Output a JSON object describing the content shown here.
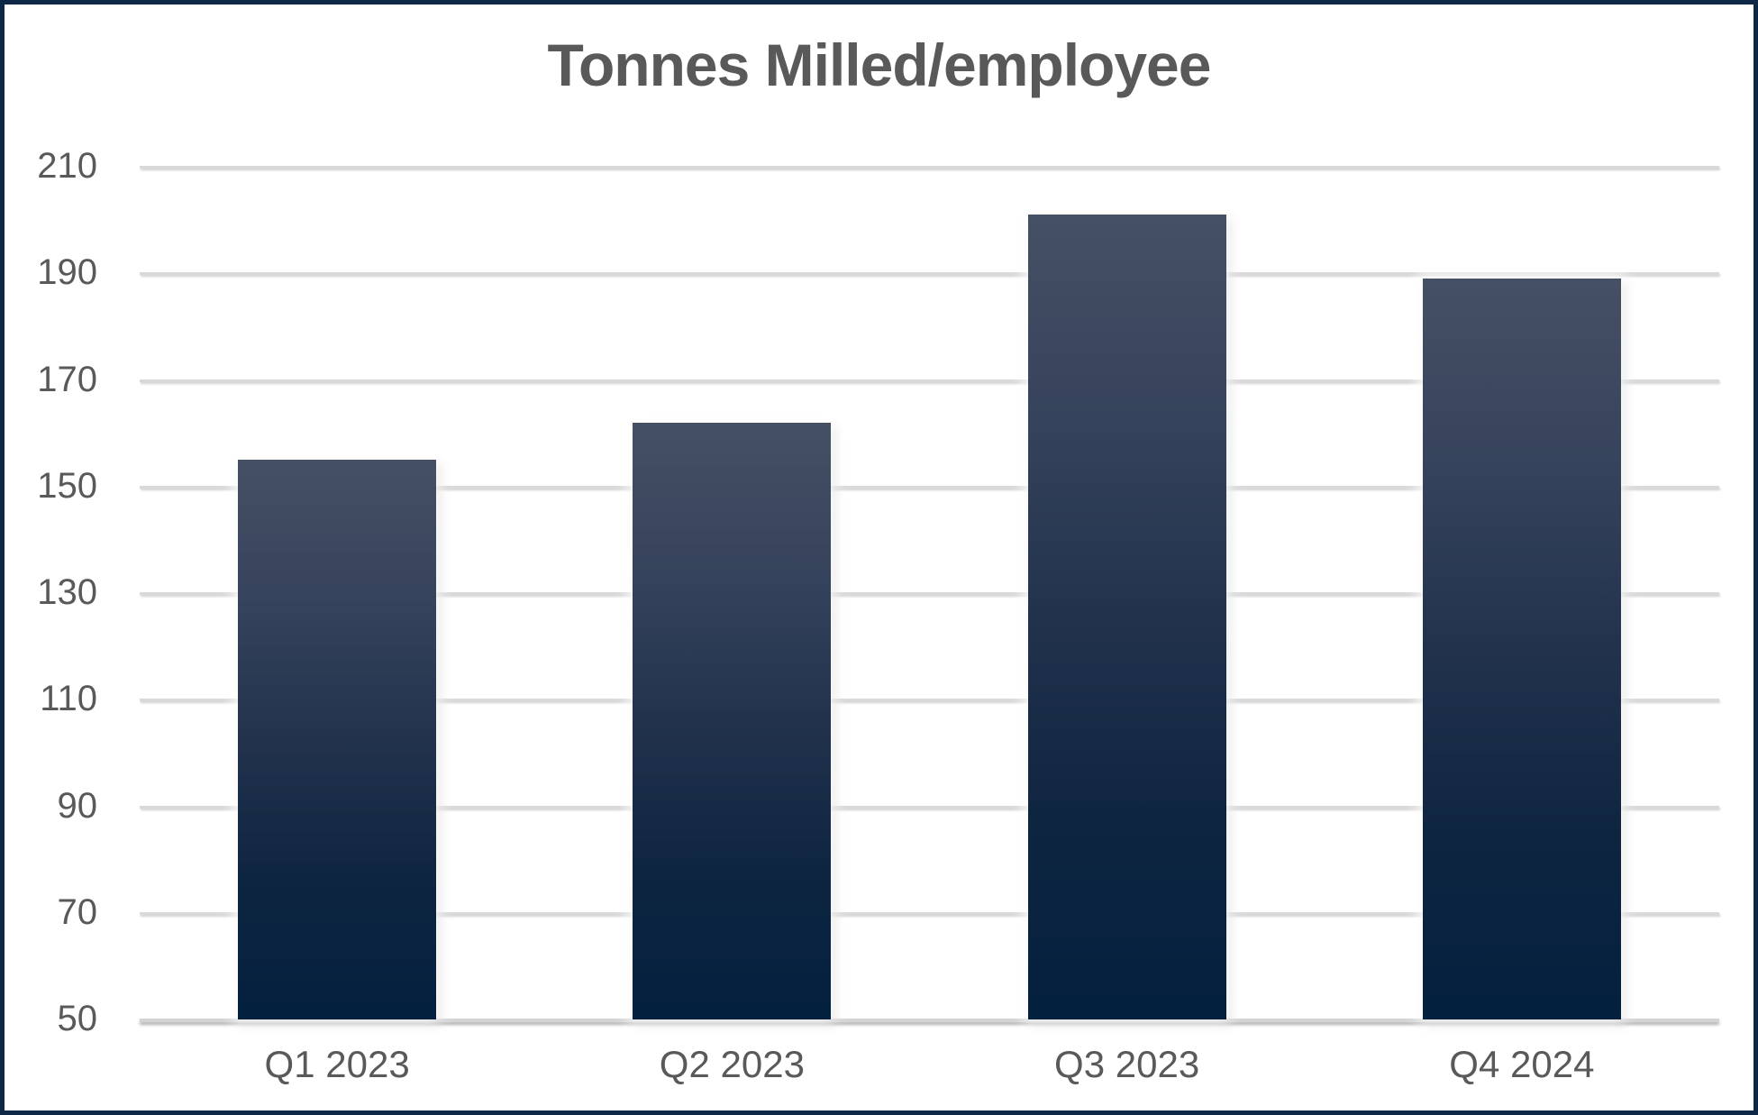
{
  "window": {
    "background": "#ffffff",
    "border_color": "#0f2747"
  },
  "chart_data": {
    "type": "bar",
    "title": "Tonnes Milled/employee",
    "categories": [
      "Q1 2023",
      "Q2 2023",
      "Q3 2023",
      "Q4 2024"
    ],
    "values": [
      155,
      162,
      201,
      189
    ],
    "xlabel": "",
    "ylabel": "",
    "ylim": [
      50,
      210
    ],
    "ytick_step": 20,
    "yticks": [
      210,
      190,
      170,
      150,
      130,
      110,
      90,
      70,
      50
    ],
    "grid": "horizontal-only",
    "legend": "none",
    "colors": {
      "bar_gradient_top": "#465064",
      "bar_gradient_bottom": "#03203f",
      "gridline": "#d9d9d9",
      "title_text": "#595959",
      "tick_text": "#595959",
      "frame_border": "#0f2747"
    }
  }
}
